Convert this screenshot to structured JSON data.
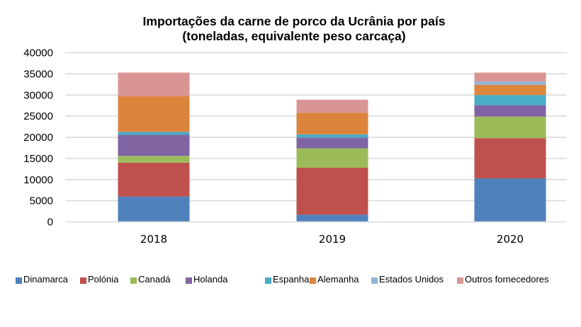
{
  "chart_data": {
    "type": "bar",
    "stacked": true,
    "title": [
      "Importações da carne de porco da Ucrânia por país",
      "(toneladas, equivalente peso carcaça)"
    ],
    "xlabel": "",
    "ylabel": "",
    "categories": [
      "2018",
      "2019",
      "2020"
    ],
    "ylim": [
      0,
      40000
    ],
    "yticks": [
      "0",
      "5000",
      "10000",
      "15000",
      "20000",
      "25000",
      "30000",
      "35000",
      "40000"
    ],
    "grid": true,
    "legend_position": "bottom",
    "series": [
      {
        "name": "Dinamarca",
        "color": "#4f81bd",
        "values": [
          6000,
          1700,
          10300
        ]
      },
      {
        "name": "Polónia",
        "color": "#c0504d",
        "values": [
          8000,
          11100,
          9500
        ]
      },
      {
        "name": "Canadá",
        "color": "#9bbb59",
        "values": [
          1600,
          4600,
          5100
        ]
      },
      {
        "name": "Holanda",
        "color": "#8064a2",
        "values": [
          5000,
          2500,
          2700
        ]
      },
      {
        "name": "Espanha",
        "color": "#4bacc6",
        "values": [
          700,
          800,
          2400
        ]
      },
      {
        "name": "Alemanha",
        "color": "#dd843c",
        "values": [
          8400,
          5100,
          2400
        ]
      },
      {
        "name": "Estados Unidos",
        "color": "#95b3d7",
        "values": [
          0,
          0,
          800
        ]
      },
      {
        "name": "Outros fornecedores",
        "color": "#d99594",
        "values": [
          5600,
          3100,
          2100
        ]
      }
    ]
  }
}
